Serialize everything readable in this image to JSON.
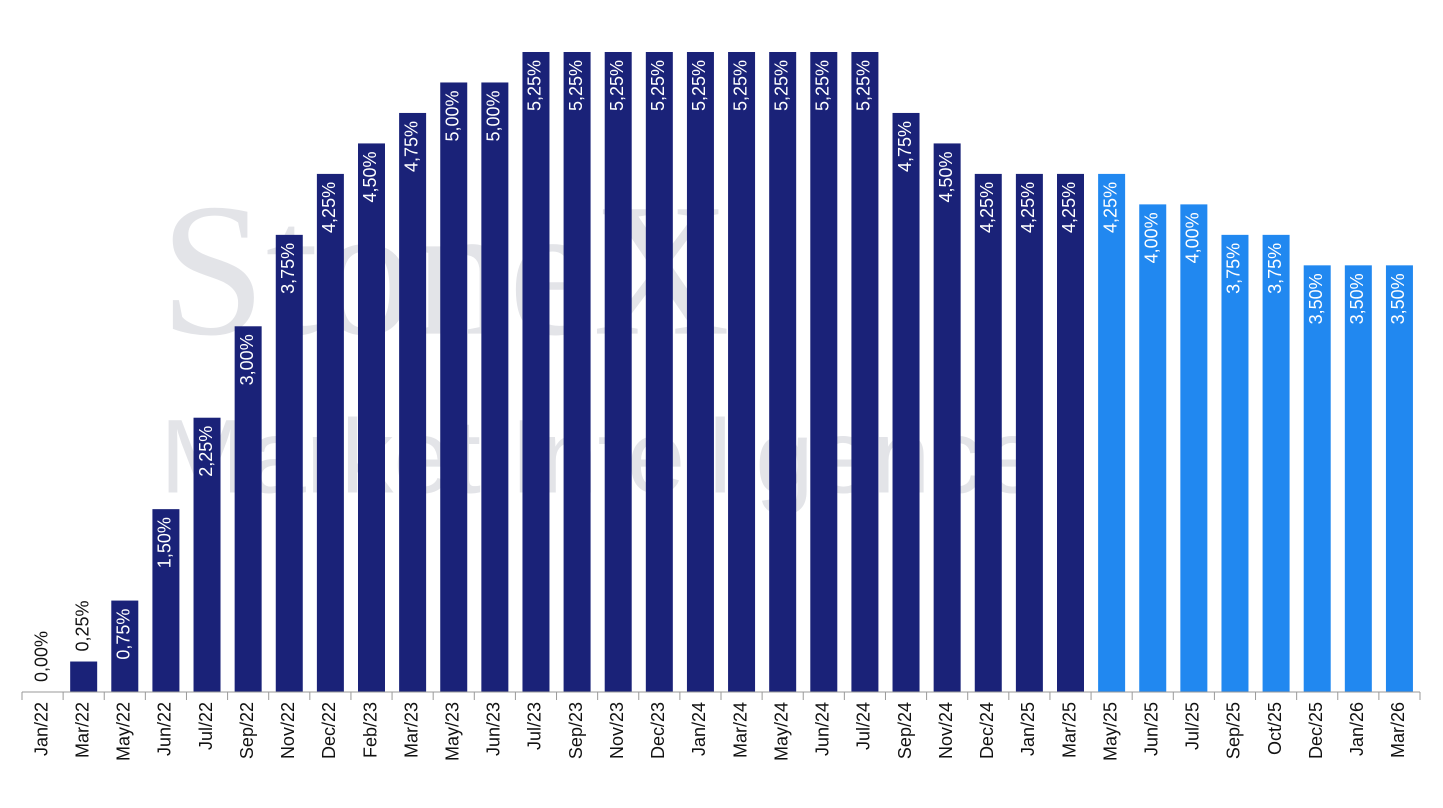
{
  "chart_data": {
    "type": "bar",
    "watermark": [
      "StoneX",
      "Market Intelligence"
    ],
    "categories": [
      "Jan/22",
      "Mar/22",
      "May/22",
      "Jun/22",
      "Jul/22",
      "Sep/22",
      "Nov/22",
      "Dec/22",
      "Feb/23",
      "Mar/23",
      "May/23",
      "Jun/23",
      "Jul/23",
      "Sep/23",
      "Nov/23",
      "Dec/23",
      "Jan/24",
      "Mar/24",
      "May/24",
      "Jun/24",
      "Jul/24",
      "Sep/24",
      "Nov/24",
      "Dec/24",
      "Jan/25",
      "Mar/25",
      "May/25",
      "Jun/25",
      "Jul/25",
      "Sep/25",
      "Oct/25",
      "Dec/25",
      "Jan/26",
      "Mar/26"
    ],
    "values": [
      0,
      0.25,
      0.75,
      1.5,
      2.25,
      3,
      3.75,
      4.25,
      4.5,
      4.75,
      5,
      5,
      5.25,
      5.25,
      5.25,
      5.25,
      5.25,
      5.25,
      5.25,
      5.25,
      5.25,
      4.75,
      4.5,
      4.25,
      4.25,
      4.25,
      4.25,
      4,
      4,
      3.75,
      3.75,
      3.5,
      3.5,
      3.5
    ],
    "value_labels": [
      "0,00%",
      "0,25%",
      "0,75%",
      "1,50%",
      "2,25%",
      "3,00%",
      "3,75%",
      "4,25%",
      "4,50%",
      "4,75%",
      "5,00%",
      "5,00%",
      "5,25%",
      "5,25%",
      "5,25%",
      "5,25%",
      "5,25%",
      "5,25%",
      "5,25%",
      "5,25%",
      "5,25%",
      "4,75%",
      "4,50%",
      "4,25%",
      "4,25%",
      "4,25%",
      "4,25%",
      "4,00%",
      "4,00%",
      "3,75%",
      "3,75%",
      "3,50%",
      "3,50%",
      "3,50%"
    ],
    "colors": [
      "#1a2278",
      "#1a2278",
      "#1a2278",
      "#1a2278",
      "#1a2278",
      "#1a2278",
      "#1a2278",
      "#1a2278",
      "#1a2278",
      "#1a2278",
      "#1a2278",
      "#1a2278",
      "#1a2278",
      "#1a2278",
      "#1a2278",
      "#1a2278",
      "#1a2278",
      "#1a2278",
      "#1a2278",
      "#1a2278",
      "#1a2278",
      "#1a2278",
      "#1a2278",
      "#1a2278",
      "#1a2278",
      "#1a2278",
      "#2188f0",
      "#2188f0",
      "#2188f0",
      "#2188f0",
      "#2188f0",
      "#2188f0",
      "#2188f0",
      "#2188f0"
    ]
  }
}
